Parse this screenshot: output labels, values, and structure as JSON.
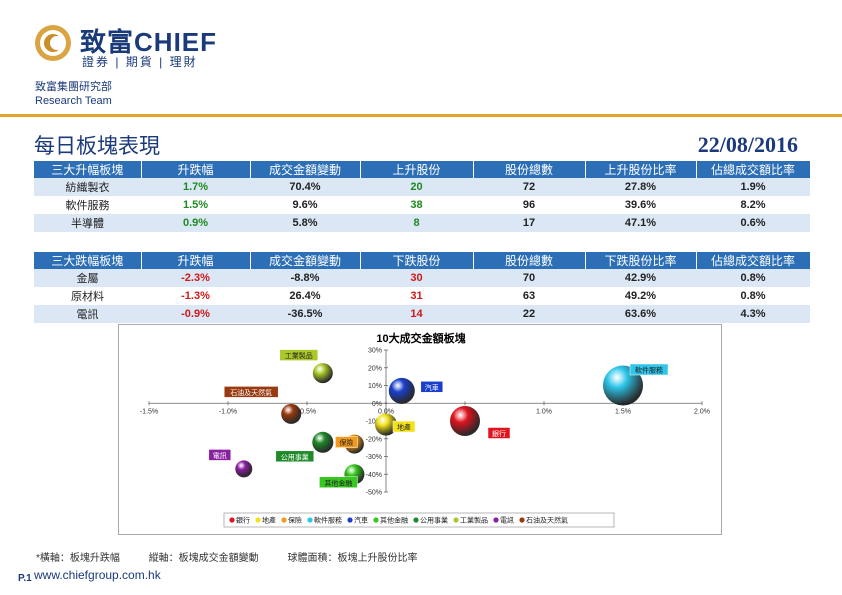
{
  "header": {
    "brand_cn": "致富",
    "brand_en": "CHIEF",
    "brand_sub": "證券 | 期貨 | 理財",
    "dept_cn": "致富集團研究部",
    "dept_en": "Research Team",
    "title": "每日板塊表現",
    "date": "22/08/2016"
  },
  "colors": {
    "header_blue": "#2c6fb7",
    "rule_gold": "#e2a72a",
    "up_green": "#1e8a1e",
    "down_red": "#d01818"
  },
  "top_table": {
    "headers": [
      "三大升幅板塊",
      "升跌幅",
      "成交金額變動",
      "上升股份",
      "股份總數",
      "上升股份比率",
      "佔總成交額比率"
    ],
    "rows": [
      [
        "紡織製衣",
        "1.7%",
        "70.4%",
        "20",
        "72",
        "27.8%",
        "1.9%"
      ],
      [
        "軟件服務",
        "1.5%",
        "9.6%",
        "38",
        "96",
        "39.6%",
        "8.2%"
      ],
      [
        "半導體",
        "0.9%",
        "5.8%",
        "8",
        "17",
        "47.1%",
        "0.6%"
      ]
    ]
  },
  "bottom_table": {
    "headers": [
      "三大跌幅板塊",
      "升跌幅",
      "成交金額變動",
      "下跌股份",
      "股份總數",
      "下跌股份比率",
      "佔總成交額比率"
    ],
    "rows": [
      [
        "金屬",
        "-2.3%",
        "-8.8%",
        "30",
        "70",
        "42.9%",
        "0.8%"
      ],
      [
        "原材料",
        "-1.3%",
        "26.4%",
        "31",
        "63",
        "49.2%",
        "0.8%"
      ],
      [
        "電訊",
        "-0.9%",
        "-36.5%",
        "14",
        "22",
        "63.6%",
        "4.3%"
      ]
    ]
  },
  "chart_data": {
    "type": "scatter",
    "title": "10大成交金額板塊",
    "xlim": [
      -1.5,
      2.0
    ],
    "ylim": [
      -50,
      30
    ],
    "x_ticks": [
      "-1.5%",
      "-1.0%",
      "-0.5%",
      "0.0%",
      "0.5%",
      "1.0%",
      "1.5%",
      "2.0%"
    ],
    "y_ticks": [
      "30%",
      "20%",
      "10%",
      "0%",
      "-10%",
      "-20%",
      "-30%",
      "-40%",
      "-50%"
    ],
    "series": [
      {
        "name": "銀行",
        "x": 0.5,
        "y": -10,
        "size": 30,
        "color": "#e0141e"
      },
      {
        "name": "地產",
        "x": 0.0,
        "y": -12,
        "size": 22,
        "color": "#f2e21a"
      },
      {
        "name": "保險",
        "x": -0.2,
        "y": -23,
        "size": 19,
        "color": "#f39a1a"
      },
      {
        "name": "軟件服務",
        "x": 1.5,
        "y": 10,
        "size": 40,
        "color": "#2ec6ea"
      },
      {
        "name": "汽車",
        "x": 0.1,
        "y": 7,
        "size": 26,
        "color": "#1a3fcf"
      },
      {
        "name": "其他金融",
        "x": -0.2,
        "y": -40,
        "size": 20,
        "color": "#36c81e"
      },
      {
        "name": "公用事業",
        "x": -0.4,
        "y": -22,
        "size": 21,
        "color": "#1f8a2a"
      },
      {
        "name": "工業製品",
        "x": -0.4,
        "y": 17,
        "size": 20,
        "color": "#aac82a"
      },
      {
        "name": "電訊",
        "x": -0.9,
        "y": -37,
        "size": 17,
        "color": "#8a1fa0"
      },
      {
        "name": "石油及天然氣",
        "x": -0.6,
        "y": -6,
        "size": 20,
        "color": "#9a3a10"
      }
    ]
  },
  "footnote": {
    "x_note": "*橫軸：板塊升跌幅",
    "y_note": "縱軸：板塊成交金額變動",
    "size_note": "球體面積：板塊上升股份比率"
  },
  "footer": {
    "page": "P.1",
    "url": "www.chiefgroup.com.hk"
  }
}
